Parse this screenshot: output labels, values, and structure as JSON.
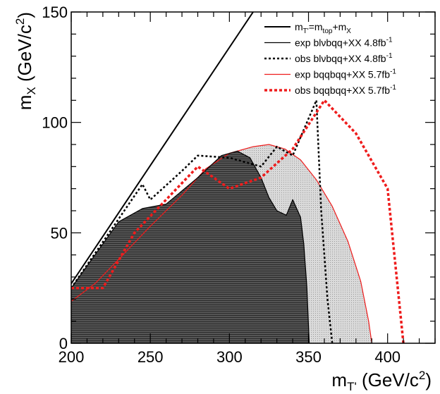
{
  "chart_data": {
    "type": "line",
    "xlim": [
      200,
      430
    ],
    "ylim": [
      0,
      150
    ],
    "x_ticks": [
      200,
      250,
      300,
      350,
      400
    ],
    "y_ticks": [
      0,
      50,
      100,
      150
    ],
    "xlabel": {
      "main": "m",
      "sub": "T'",
      "units": " (GeV/c",
      "units_sup": "2",
      "close": ")"
    },
    "ylabel": {
      "main": "m",
      "sub": "X",
      "units": " (GeV/c",
      "units_sup": "2",
      "close": ")"
    },
    "legend_position": "top-right",
    "grid": false,
    "colors": {
      "black": "#000000",
      "red": "#ee1c1c",
      "light_fill": "#d6d6d6",
      "dark_fill": "#555555"
    },
    "legend": [
      {
        "id": "kin",
        "parts": [
          {
            "t": "m"
          },
          {
            "t": "T'",
            "s": "sub"
          },
          {
            "t": "=m"
          },
          {
            "t": "top",
            "s": "sub"
          },
          {
            "t": "+m"
          },
          {
            "t": "X",
            "s": "sub"
          }
        ]
      },
      {
        "id": "exp_blv",
        "parts": [
          {
            "t": "exp blνbqq+XX 4.8fb"
          },
          {
            "t": "-1",
            "s": "sup"
          }
        ]
      },
      {
        "id": "obs_blv",
        "parts": [
          {
            "t": "obs blνbqq+XX 4.8fb"
          },
          {
            "t": "-1",
            "s": "sup"
          }
        ]
      },
      {
        "id": "exp_bqq",
        "parts": [
          {
            "t": "exp bqqbqq+XX 5.7fb"
          },
          {
            "t": "-1",
            "s": "sup"
          }
        ]
      },
      {
        "id": "obs_bqq",
        "parts": [
          {
            "t": "obs bqqbqq+XX 5.7fb"
          },
          {
            "t": "-1",
            "s": "sup"
          }
        ]
      }
    ],
    "series": [
      {
        "id": "kin",
        "style": "solid",
        "color": "#000000",
        "points": [
          [
            200,
            27
          ],
          [
            315,
            150
          ]
        ]
      },
      {
        "id": "exp_bqq",
        "style": "solid",
        "color": "#ee1c1c",
        "fill": "light",
        "points": [
          [
            200,
            19
          ],
          [
            215,
            27
          ],
          [
            230,
            38
          ],
          [
            250,
            53
          ],
          [
            270,
            67
          ],
          [
            285,
            79
          ],
          [
            300,
            86
          ],
          [
            315,
            89
          ],
          [
            325,
            90
          ],
          [
            335,
            88
          ],
          [
            345,
            83
          ],
          [
            355,
            74
          ],
          [
            365,
            62
          ],
          [
            375,
            46
          ],
          [
            383,
            28
          ],
          [
            388,
            10
          ],
          [
            390,
            0
          ]
        ]
      },
      {
        "id": "exp_blv",
        "style": "solid",
        "color": "#000000",
        "fill": "dark",
        "points": [
          [
            200,
            25
          ],
          [
            215,
            40
          ],
          [
            230,
            55
          ],
          [
            245,
            61
          ],
          [
            260,
            63
          ],
          [
            280,
            75
          ],
          [
            295,
            85
          ],
          [
            305,
            87
          ],
          [
            313,
            84
          ],
          [
            320,
            75
          ],
          [
            325,
            66
          ],
          [
            330,
            60
          ],
          [
            336,
            58
          ],
          [
            340,
            65
          ],
          [
            345,
            57
          ],
          [
            347,
            45
          ],
          [
            349,
            25
          ],
          [
            350,
            8
          ],
          [
            350.5,
            0
          ]
        ]
      },
      {
        "id": "obs_blv",
        "style": "dotted",
        "color": "#000000",
        "points": [
          [
            200,
            25
          ],
          [
            245,
            72
          ],
          [
            250,
            65
          ],
          [
            270,
            78
          ],
          [
            280,
            85
          ],
          [
            300,
            84
          ],
          [
            320,
            80
          ],
          [
            330,
            89
          ],
          [
            340,
            85
          ],
          [
            355,
            110
          ],
          [
            358,
            60
          ],
          [
            362,
            20
          ],
          [
            365,
            0
          ]
        ]
      },
      {
        "id": "obs_bqq",
        "style": "dotted",
        "color": "#ee1c1c",
        "points": [
          [
            200,
            25
          ],
          [
            220,
            25
          ],
          [
            240,
            50
          ],
          [
            260,
            65
          ],
          [
            280,
            80
          ],
          [
            300,
            70
          ],
          [
            320,
            75
          ],
          [
            340,
            88
          ],
          [
            360,
            110
          ],
          [
            380,
            95
          ],
          [
            400,
            70
          ],
          [
            410,
            0
          ]
        ]
      }
    ]
  }
}
